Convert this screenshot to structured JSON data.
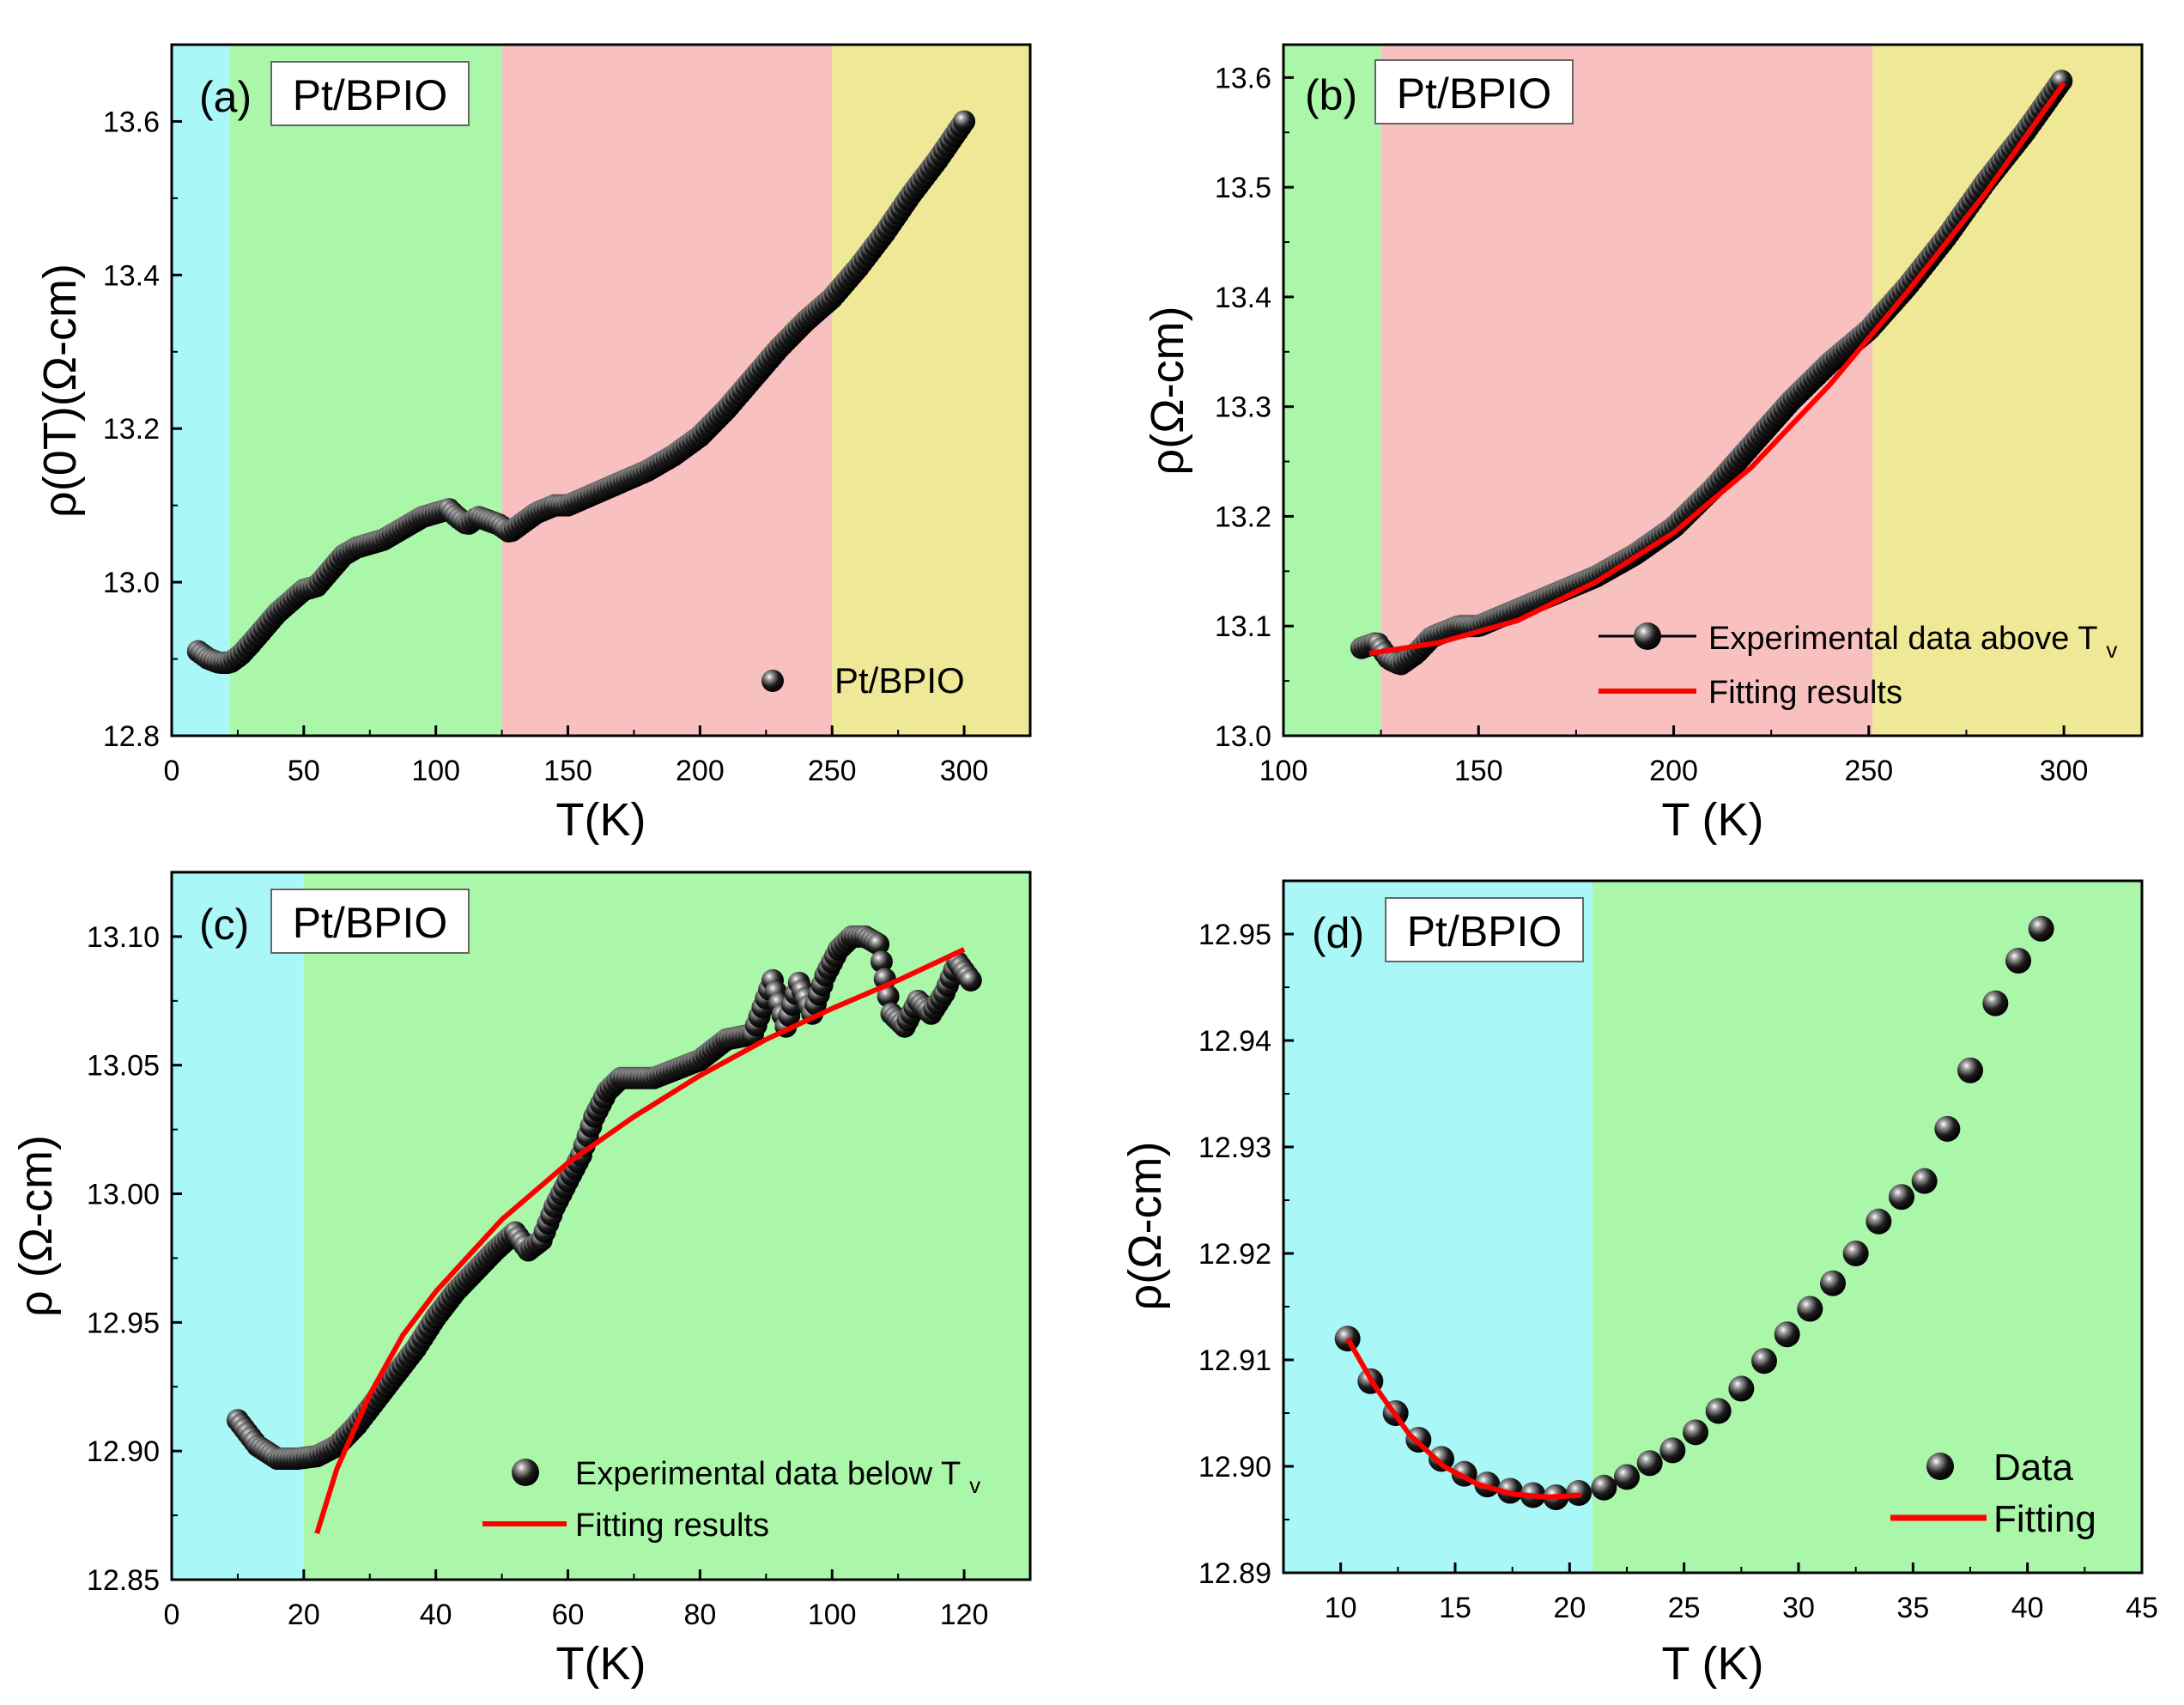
{
  "figure": {
    "colors": {
      "cyan": "#aaf7f7",
      "green": "#aaf7aa",
      "red": "#f9c0c0",
      "yellow": "#efe896",
      "fit": "#ff0000",
      "marker": "#111111"
    }
  },
  "chart_data": [
    {
      "id": "a",
      "type": "scatter",
      "panel_label": "(a)",
      "sample_label": "Pt/BPIO",
      "xlabel": "T(K)",
      "ylabel": "ρ(0T)(Ω-cm)",
      "xlim": [
        0,
        325
      ],
      "ylim": [
        12.8,
        13.7
      ],
      "xticks": [
        0,
        50,
        100,
        150,
        200,
        250,
        300
      ],
      "xtick_labels": [
        "0",
        "50",
        "100",
        "150",
        "200",
        "250",
        "300"
      ],
      "yticks": [
        12.8,
        13.0,
        13.2,
        13.4,
        13.6
      ],
      "ytick_labels": [
        "12.8",
        "13.0",
        "13.2",
        "13.4",
        "13.6"
      ],
      "regions": [
        {
          "from": 0,
          "to": 22,
          "color": "cyan"
        },
        {
          "from": 22,
          "to": 125,
          "color": "green"
        },
        {
          "from": 125,
          "to": 250,
          "color": "red"
        },
        {
          "from": 250,
          "to": 325,
          "color": "yellow"
        }
      ],
      "legend": [
        {
          "label": "Pt/BPIO",
          "kind": "marker"
        }
      ],
      "legend_position": "lower-right",
      "series": [
        {
          "name": "Pt/BPIO",
          "kind": "marker",
          "density": "dense",
          "x": [
            10,
            14,
            18,
            22,
            26,
            30,
            35,
            40,
            45,
            50,
            55,
            60,
            65,
            70,
            75,
            80,
            85,
            90,
            95,
            100,
            105,
            108,
            112,
            116,
            120,
            124,
            128,
            132,
            138,
            145,
            150,
            160,
            170,
            180,
            190,
            200,
            210,
            220,
            230,
            240,
            250,
            260,
            270,
            280,
            290,
            300
          ],
          "y": [
            12.91,
            12.9,
            12.895,
            12.895,
            12.905,
            12.92,
            12.94,
            12.96,
            12.975,
            12.99,
            12.995,
            13.015,
            13.035,
            13.045,
            13.05,
            13.055,
            13.065,
            13.075,
            13.085,
            13.09,
            13.095,
            13.085,
            13.075,
            13.085,
            13.08,
            13.075,
            13.065,
            13.075,
            13.09,
            13.1,
            13.1,
            13.115,
            13.13,
            13.145,
            13.165,
            13.19,
            13.225,
            13.265,
            13.305,
            13.34,
            13.37,
            13.41,
            13.455,
            13.505,
            13.55,
            13.6
          ]
        }
      ]
    },
    {
      "id": "b",
      "type": "scatter",
      "panel_label": "(b)",
      "sample_label": "Pt/BPIO",
      "xlabel": "T (K)",
      "ylabel": "ρ(Ω-cm)",
      "xlim": [
        100,
        320
      ],
      "ylim": [
        13.0,
        13.63
      ],
      "xticks": [
        100,
        150,
        200,
        250,
        300
      ],
      "xtick_labels": [
        "100",
        "150",
        "200",
        "250",
        "300"
      ],
      "yticks": [
        13.0,
        13.1,
        13.2,
        13.3,
        13.4,
        13.5,
        13.6
      ],
      "ytick_labels": [
        "13.0",
        "13.1",
        "13.2",
        "13.3",
        "13.4",
        "13.5",
        "13.6"
      ],
      "regions": [
        {
          "from": 100,
          "to": 125,
          "color": "green"
        },
        {
          "from": 125,
          "to": 251,
          "color": "red"
        },
        {
          "from": 251,
          "to": 320,
          "color": "yellow"
        }
      ],
      "legend": [
        {
          "label": "Experimental data above T",
          "sub": "v",
          "kind": "line-marker"
        },
        {
          "label": "Fitting results",
          "kind": "line"
        }
      ],
      "legend_position": "lower-right",
      "series": [
        {
          "name": "Experimental data above Tv",
          "kind": "marker",
          "density": "dense",
          "x": [
            120,
            124,
            127,
            130,
            134,
            138,
            145,
            150,
            160,
            170,
            180,
            190,
            200,
            210,
            220,
            230,
            240,
            250,
            260,
            270,
            280,
            290,
            300
          ],
          "y": [
            13.08,
            13.085,
            13.07,
            13.065,
            13.075,
            13.09,
            13.1,
            13.1,
            13.115,
            13.13,
            13.145,
            13.165,
            13.19,
            13.225,
            13.265,
            13.305,
            13.34,
            13.37,
            13.41,
            13.455,
            13.505,
            13.55,
            13.6
          ]
        },
        {
          "name": "Fitting results",
          "kind": "line",
          "x": [
            122,
            140,
            160,
            180,
            200,
            220,
            240,
            260,
            280,
            300
          ],
          "y": [
            13.075,
            13.085,
            13.105,
            13.14,
            13.185,
            13.245,
            13.32,
            13.405,
            13.495,
            13.595
          ]
        }
      ]
    },
    {
      "id": "c",
      "type": "scatter",
      "panel_label": "(c)",
      "sample_label": "Pt/BPIO",
      "xlabel": "T(K)",
      "ylabel": "ρ (Ω-cm)",
      "xlim": [
        0,
        130
      ],
      "ylim": [
        12.85,
        13.125
      ],
      "xticks": [
        0,
        20,
        40,
        60,
        80,
        100,
        120
      ],
      "xtick_labels": [
        "0",
        "20",
        "40",
        "60",
        "80",
        "100",
        "120"
      ],
      "yticks": [
        12.85,
        12.9,
        12.95,
        13.0,
        13.05,
        13.1
      ],
      "ytick_labels": [
        "12.85",
        "12.90",
        "12.95",
        "13.00",
        "13.05",
        "13.10"
      ],
      "regions": [
        {
          "from": 0,
          "to": 20,
          "color": "cyan"
        },
        {
          "from": 20,
          "to": 130,
          "color": "green"
        }
      ],
      "legend": [
        {
          "label": "Experimental data below T",
          "sub": "v",
          "kind": "marker"
        },
        {
          "label": "Fitting results",
          "kind": "line"
        }
      ],
      "legend_position": "lower-right",
      "series": [
        {
          "name": "Experimental data below Tv",
          "kind": "marker",
          "density": "dense",
          "x": [
            10,
            13,
            16,
            19,
            22,
            25,
            28,
            31,
            34,
            37,
            40,
            43,
            46,
            49,
            52,
            54,
            56,
            58,
            60,
            62,
            64,
            66,
            68,
            70,
            73,
            76,
            80,
            84,
            88,
            91,
            93,
            95,
            97,
            99,
            101,
            103,
            105,
            107,
            109,
            111,
            113,
            115,
            117,
            119,
            121
          ],
          "y": [
            12.912,
            12.902,
            12.897,
            12.897,
            12.898,
            12.902,
            12.91,
            12.92,
            12.93,
            12.94,
            12.952,
            12.962,
            12.97,
            12.978,
            12.985,
            12.978,
            12.982,
            12.995,
            13.005,
            13.015,
            13.03,
            13.04,
            13.045,
            13.045,
            13.045,
            13.048,
            13.052,
            13.06,
            13.062,
            13.083,
            13.065,
            13.082,
            13.07,
            13.085,
            13.095,
            13.1,
            13.1,
            13.097,
            13.07,
            13.065,
            13.075,
            13.07,
            13.078,
            13.09,
            13.083
          ]
        },
        {
          "name": "Fitting results",
          "kind": "line",
          "x": [
            22,
            25,
            30,
            35,
            40,
            50,
            60,
            70,
            80,
            90,
            100,
            110,
            120
          ],
          "y": [
            12.868,
            12.893,
            12.922,
            12.945,
            12.962,
            12.99,
            13.012,
            13.03,
            13.046,
            13.06,
            13.072,
            13.083,
            13.095
          ]
        }
      ]
    },
    {
      "id": "d",
      "type": "scatter",
      "panel_label": "(d)",
      "sample_label": "Pt/BPIO",
      "xlabel": "T (K)",
      "ylabel": "ρ(Ω-cm)",
      "xlim": [
        7.5,
        45
      ],
      "ylim": [
        12.89,
        12.955
      ],
      "xticks": [
        10,
        15,
        20,
        25,
        30,
        35,
        40,
        45
      ],
      "xtick_labels": [
        "10",
        "15",
        "20",
        "25",
        "30",
        "35",
        "40",
        "45"
      ],
      "yticks": [
        12.89,
        12.9,
        12.91,
        12.92,
        12.93,
        12.94,
        12.95
      ],
      "ytick_labels": [
        "12.89",
        "12.90",
        "12.91",
        "12.92",
        "12.93",
        "12.94",
        "12.95"
      ],
      "regions": [
        {
          "from": 7.5,
          "to": 21,
          "color": "cyan"
        },
        {
          "from": 21,
          "to": 45,
          "color": "green"
        }
      ],
      "legend": [
        {
          "label": "Data",
          "kind": "marker"
        },
        {
          "label": "Fitting",
          "kind": "line"
        }
      ],
      "legend_position": "lower-right",
      "series": [
        {
          "name": "Data",
          "kind": "marker",
          "density": "sparse",
          "x": [
            10.3,
            11.3,
            12.4,
            13.4,
            14.4,
            15.4,
            16.4,
            17.4,
            18.4,
            19.4,
            20.4,
            21.5,
            22.5,
            23.5,
            24.5,
            25.5,
            26.5,
            27.5,
            28.5,
            29.5,
            30.5,
            31.5,
            32.5,
            33.5,
            34.5,
            35.5,
            36.5,
            37.5,
            38.6,
            39.6,
            40.6
          ],
          "y": [
            12.912,
            12.908,
            12.905,
            12.9025,
            12.9007,
            12.8993,
            12.8983,
            12.8977,
            12.8973,
            12.8971,
            12.8975,
            12.898,
            12.899,
            12.9003,
            12.9015,
            12.9032,
            12.9052,
            12.9073,
            12.9099,
            12.9124,
            12.9148,
            12.9172,
            12.92,
            12.923,
            12.9253,
            12.9268,
            12.9317,
            12.9372,
            12.9435,
            12.9475,
            12.9505
          ]
        },
        {
          "name": "Fitting",
          "kind": "line",
          "x": [
            10.3,
            11.5,
            13,
            14.5,
            16,
            17.5,
            19,
            20.5
          ],
          "y": [
            12.912,
            12.9075,
            12.903,
            12.9,
            12.8983,
            12.8974,
            12.8971,
            12.8973
          ]
        }
      ]
    }
  ]
}
